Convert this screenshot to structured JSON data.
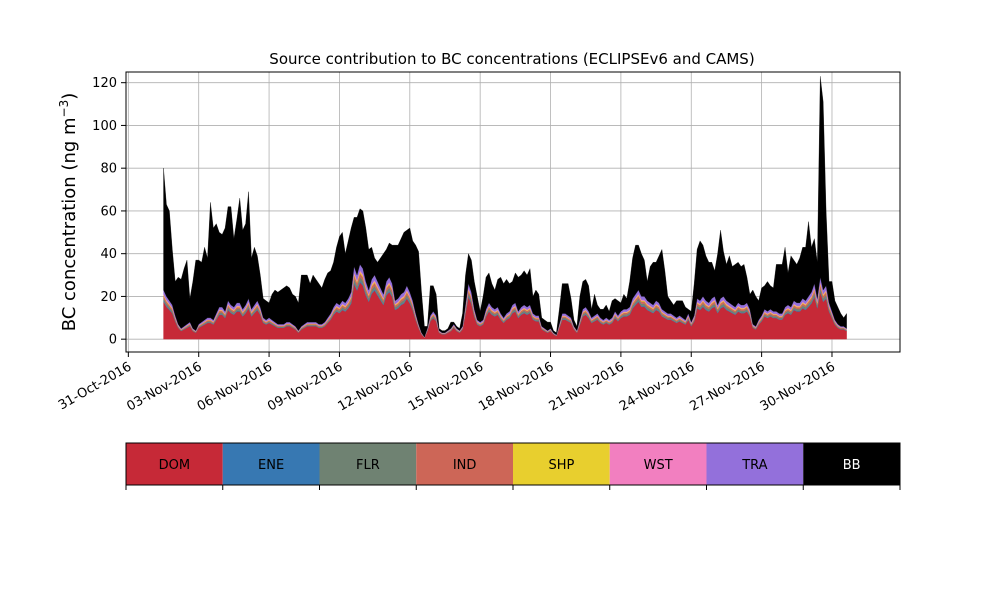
{
  "chart_data": {
    "type": "area",
    "stacked": true,
    "title": "Source contribution to BC concentrations (ECLIPSEv6 and CAMS)",
    "ylabel": "BC concentration (ng m",
    "ylabel_sup": "−3",
    "ylabel_close": ")",
    "ylim": [
      -6,
      125
    ],
    "yticks": [
      0,
      20,
      40,
      60,
      80,
      100,
      120
    ],
    "xlim_days": [
      -0.1,
      32.9
    ],
    "xticks": [
      {
        "day": 0,
        "label": "31-Oct-2016"
      },
      {
        "day": 3,
        "label": "03-Nov-2016"
      },
      {
        "day": 6,
        "label": "06-Nov-2016"
      },
      {
        "day": 9,
        "label": "09-Nov-2016"
      },
      {
        "day": 12,
        "label": "12-Nov-2016"
      },
      {
        "day": 15,
        "label": "15-Nov-2016"
      },
      {
        "day": 18,
        "label": "18-Nov-2016"
      },
      {
        "day": 21,
        "label": "21-Nov-2016"
      },
      {
        "day": 24,
        "label": "24-Nov-2016"
      },
      {
        "day": 27,
        "label": "27-Nov-2016"
      },
      {
        "day": 30,
        "label": "30-Nov-2016"
      }
    ],
    "grid": true,
    "x_start_date": "2016-11-01",
    "time_step_hours": 3,
    "anthropogenic_series": [
      {
        "name": "DOM",
        "color": "#c62937",
        "fraction": 0.76
      },
      {
        "name": "ENE",
        "color": "#3778b2",
        "fraction": 0.02
      },
      {
        "name": "FLR",
        "color": "#6f8272",
        "fraction": 0.05
      },
      {
        "name": "IND",
        "color": "#cd6657",
        "fraction": 0.05
      },
      {
        "name": "SHP",
        "color": "#e8cf2e",
        "fraction": 0.02
      },
      {
        "name": "WST",
        "color": "#f27fc0",
        "fraction": 0.02
      },
      {
        "name": "TRA",
        "color": "#9370db",
        "fraction": 0.08
      }
    ],
    "bb_series": {
      "name": "BB",
      "color": "#000000"
    },
    "anthropogenic_total": [
      23,
      20,
      18,
      16,
      11,
      7,
      5,
      6,
      7,
      8,
      5,
      4,
      7,
      8,
      9,
      10,
      10,
      9,
      12,
      15,
      15,
      13,
      18,
      16,
      15,
      17,
      17,
      14,
      16,
      19,
      14,
      16,
      18,
      15,
      10,
      9,
      10,
      9,
      8,
      7,
      7,
      7,
      8,
      8,
      7,
      6,
      4,
      6,
      7,
      8,
      8,
      8,
      8,
      7,
      7,
      8,
      10,
      12,
      15,
      17,
      16,
      18,
      17,
      19,
      22,
      34,
      30,
      35,
      33,
      27,
      23,
      28,
      30,
      27,
      24,
      21,
      27,
      29,
      26,
      18,
      19,
      21,
      22,
      25,
      22,
      18,
      12,
      7,
      3,
      1,
      5,
      11,
      13,
      11,
      4,
      3,
      3,
      4,
      5,
      7,
      5,
      4,
      6,
      16,
      26,
      22,
      14,
      9,
      8,
      9,
      14,
      17,
      15,
      14,
      15,
      12,
      10,
      12,
      13,
      16,
      17,
      13,
      15,
      16,
      15,
      16,
      12,
      11,
      11,
      6,
      5,
      4,
      5,
      3,
      2,
      7,
      12,
      12,
      11,
      10,
      6,
      4,
      9,
      14,
      15,
      13,
      10,
      11,
      12,
      10,
      9,
      10,
      9,
      10,
      13,
      11,
      13,
      14,
      14,
      15,
      19,
      21,
      23,
      20,
      20,
      18,
      17,
      16,
      18,
      17,
      14,
      13,
      12,
      12,
      11,
      10,
      11,
      10,
      9,
      12,
      8,
      11,
      19,
      18,
      20,
      18,
      17,
      19,
      20,
      16,
      19,
      20,
      18,
      17,
      16,
      15,
      17,
      16,
      16,
      17,
      14,
      7,
      6,
      9,
      11,
      14,
      13,
      14,
      13,
      13,
      12,
      12,
      15,
      16,
      15,
      18,
      17,
      17,
      19,
      18,
      20,
      22,
      26,
      19,
      29,
      23,
      25,
      17,
      13,
      9,
      7,
      6,
      6,
      5
    ],
    "bb": [
      57,
      43,
      42,
      26,
      16,
      22,
      23,
      27,
      30,
      11,
      22,
      33,
      30,
      28,
      34,
      28,
      54,
      43,
      42,
      35,
      34,
      39,
      44,
      46,
      32,
      39,
      49,
      37,
      38,
      50,
      24,
      27,
      21,
      15,
      9,
      9,
      7,
      12,
      15,
      15,
      16,
      17,
      17,
      16,
      14,
      14,
      13,
      24,
      23,
      22,
      18,
      22,
      20,
      19,
      17,
      20,
      21,
      20,
      21,
      26,
      32,
      32,
      23,
      27,
      30,
      23,
      27,
      26,
      27,
      25,
      19,
      15,
      8,
      9,
      14,
      19,
      15,
      16,
      18,
      26,
      25,
      26,
      28,
      26,
      30,
      28,
      32,
      34,
      19,
      5,
      1,
      14,
      12,
      10,
      1,
      1,
      1,
      1,
      3,
      1,
      1,
      1,
      6,
      14,
      14,
      15,
      13,
      11,
      5,
      11,
      15,
      14,
      11,
      9,
      13,
      17,
      16,
      16,
      13,
      11,
      14,
      16,
      15,
      16,
      15,
      17,
      8,
      12,
      10,
      4,
      4,
      4,
      3,
      1,
      1,
      7,
      14,
      14,
      15,
      9,
      3,
      2,
      11,
      13,
      13,
      12,
      4,
      10,
      4,
      4,
      5,
      6,
      4,
      8,
      6,
      7,
      4,
      7,
      5,
      12,
      19,
      23,
      21,
      20,
      17,
      9,
      17,
      20,
      18,
      22,
      28,
      19,
      8,
      6,
      5,
      8,
      7,
      8,
      6,
      2,
      5,
      15,
      23,
      28,
      24,
      21,
      19,
      17,
      12,
      24,
      32,
      21,
      17,
      22,
      18,
      20,
      19,
      18,
      19,
      12,
      7,
      16,
      14,
      9,
      13,
      11,
      14,
      11,
      11,
      22,
      23,
      23,
      28,
      15,
      24,
      19,
      18,
      21,
      24,
      25,
      35,
      21,
      21,
      17,
      94,
      88,
      35,
      10,
      14,
      9,
      8,
      6,
      4,
      7
    ]
  },
  "legend": {
    "items": [
      {
        "name": "DOM",
        "color": "#c62937",
        "text_color": "#000000"
      },
      {
        "name": "ENE",
        "color": "#3778b2",
        "text_color": "#000000"
      },
      {
        "name": "FLR",
        "color": "#6f8272",
        "text_color": "#000000"
      },
      {
        "name": "IND",
        "color": "#cd6657",
        "text_color": "#000000"
      },
      {
        "name": "SHP",
        "color": "#e8cf2e",
        "text_color": "#000000"
      },
      {
        "name": "WST",
        "color": "#f27fc0",
        "text_color": "#000000"
      },
      {
        "name": "TRA",
        "color": "#9370db",
        "text_color": "#000000"
      },
      {
        "name": "BB",
        "color": "#000000",
        "text_color": "#ffffff"
      }
    ]
  }
}
